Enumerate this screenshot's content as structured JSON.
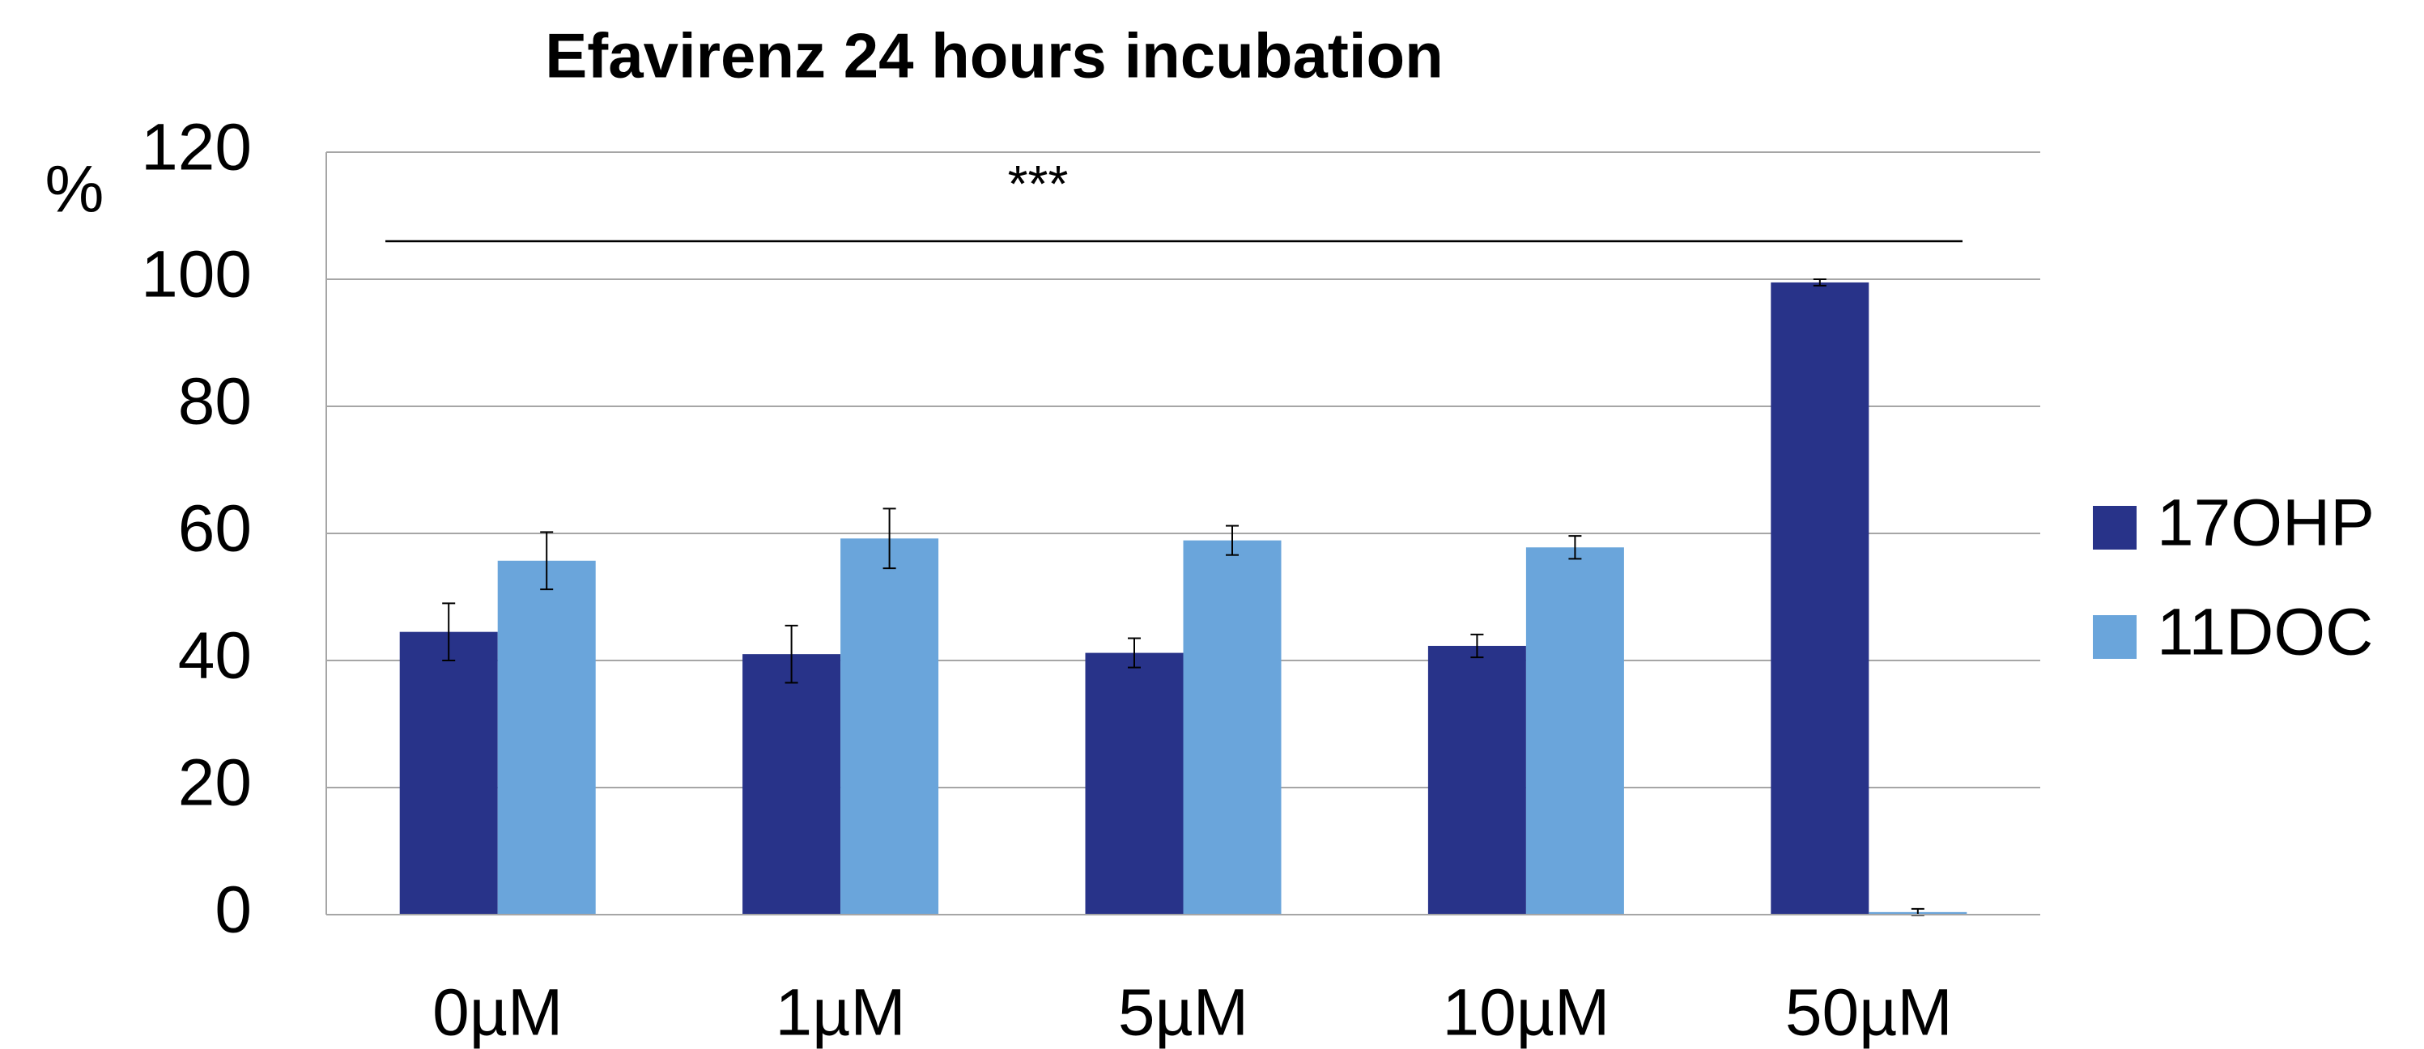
{
  "chart_data": {
    "type": "bar",
    "title": "Efavirenz 24 hours incubation",
    "y_label": "%",
    "annotation": "***",
    "categories": [
      "0µM",
      "1µM",
      "5µM",
      "10µM",
      "50µM"
    ],
    "series": [
      {
        "name": "17OHP",
        "color": "#283389",
        "values": [
          44.5,
          41,
          41.2,
          42.3,
          99.5
        ],
        "errors": [
          4.5,
          4.5,
          2.3,
          1.8,
          0.5
        ]
      },
      {
        "name": "11DOC",
        "color": "#6aa5db",
        "values": [
          55.7,
          59.2,
          58.9,
          57.8,
          0.4
        ],
        "errors": [
          4.5,
          4.7,
          2.3,
          1.8,
          0.5
        ]
      }
    ],
    "ylim": [
      0,
      120
    ],
    "yticks": [
      0,
      20,
      40,
      60,
      80,
      100,
      120
    ],
    "grid": true,
    "legend": "right"
  }
}
